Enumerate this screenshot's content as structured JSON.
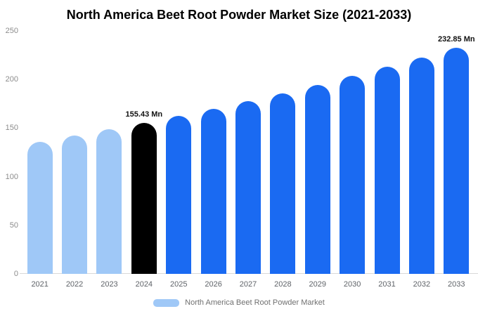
{
  "chart_data": {
    "type": "bar",
    "title": "North America Beet Root Powder Market Size (2021-2033)",
    "categories": [
      "2021",
      "2022",
      "2023",
      "2024",
      "2025",
      "2026",
      "2027",
      "2028",
      "2029",
      "2030",
      "2031",
      "2032",
      "2033"
    ],
    "values": [
      136,
      142,
      148.5,
      155.43,
      162.6,
      170,
      177.9,
      186,
      194.6,
      203.5,
      212.9,
      222.6,
      232.85
    ],
    "unit": "Mn",
    "ylim": [
      0,
      250
    ],
    "yticks": [
      0,
      50,
      100,
      150,
      200,
      250
    ],
    "bar_colors": [
      "#9fc8f7",
      "#9fc8f7",
      "#9fc8f7",
      "#000000",
      "#1a6af2",
      "#1a6af2",
      "#1a6af2",
      "#1a6af2",
      "#1a6af2",
      "#1a6af2",
      "#1a6af2",
      "#1a6af2",
      "#1a6af2"
    ],
    "annotations": [
      {
        "category": "2024",
        "text": "155.43 Mn"
      },
      {
        "category": "2033",
        "text": "232.85 Mn"
      }
    ],
    "legend": {
      "label": "North America Beet Root Powder Market",
      "swatch_color": "#9fc8f7"
    },
    "grid": false,
    "legend_position": "bottom",
    "colors": {
      "past_bars": "#9fc8f7",
      "current_bar": "#000000",
      "forecast_bars": "#1a6af2",
      "axis_text": "#8c8c8c",
      "background": "#ffffff"
    }
  }
}
